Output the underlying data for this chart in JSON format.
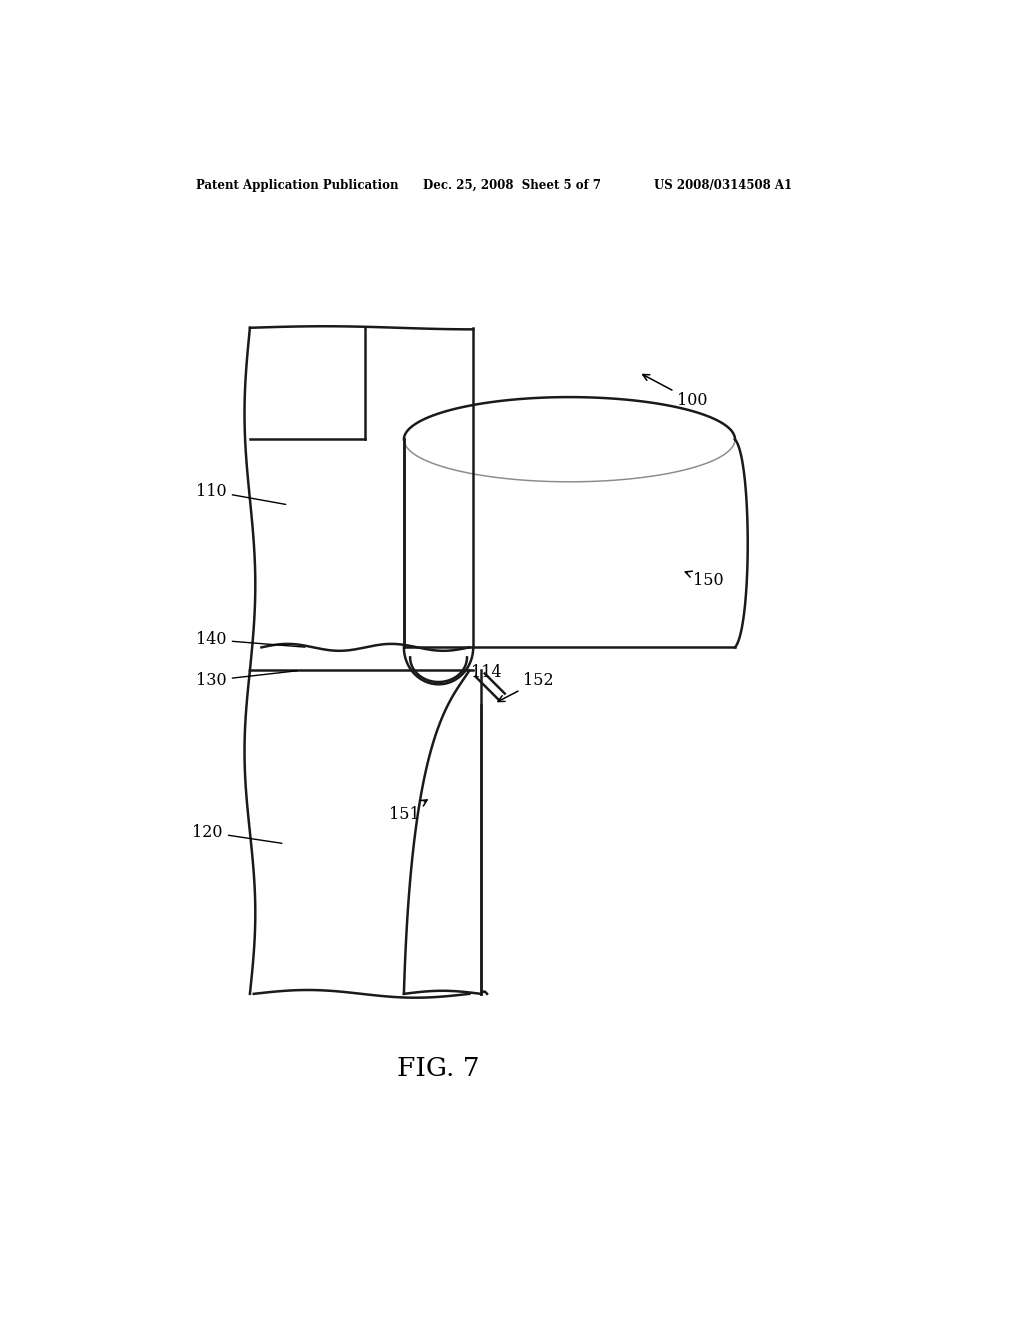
{
  "bg_color": "#ffffff",
  "line_color": "#1a1a1a",
  "header_left": "Patent Application Publication",
  "header_mid": "Dec. 25, 2008  Sheet 5 of 7",
  "header_right": "US 2008/0314508 A1",
  "figure_label": "FIG. 7",
  "lw": 1.8
}
